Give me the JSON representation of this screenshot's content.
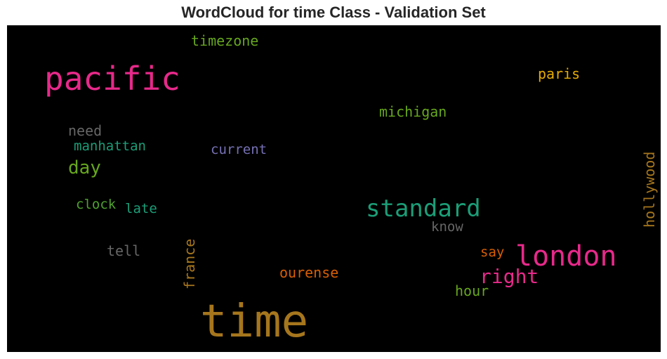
{
  "chart_data": {
    "type": "wordcloud",
    "title": "WordCloud for time Class - Validation Set",
    "background": "#000000",
    "words": [
      {
        "text": "time",
        "color": "#a6761d",
        "vertical": false
      },
      {
        "text": "pacific",
        "color": "#e7298a",
        "vertical": false
      },
      {
        "text": "london",
        "color": "#e7298a",
        "vertical": false
      },
      {
        "text": "standard",
        "color": "#1b9e77",
        "vertical": false
      },
      {
        "text": "right",
        "color": "#e7298a",
        "vertical": false
      },
      {
        "text": "day",
        "color": "#66a61e",
        "vertical": false
      },
      {
        "text": "timezone",
        "color": "#66a61e",
        "vertical": false
      },
      {
        "text": "paris",
        "color": "#e6ab02",
        "vertical": false
      },
      {
        "text": "michigan",
        "color": "#66a61e",
        "vertical": false
      },
      {
        "text": "need",
        "color": "#666666",
        "vertical": false
      },
      {
        "text": "manhattan",
        "color": "#1b9e77",
        "vertical": false
      },
      {
        "text": "current",
        "color": "#7570b3",
        "vertical": false
      },
      {
        "text": "hollywood",
        "color": "#a6761d",
        "vertical": true
      },
      {
        "text": "clock",
        "color": "#4ea12f",
        "vertical": false
      },
      {
        "text": "late",
        "color": "#1b9e77",
        "vertical": false
      },
      {
        "text": "know",
        "color": "#666666",
        "vertical": false
      },
      {
        "text": "say",
        "color": "#d95f02",
        "vertical": false
      },
      {
        "text": "tell",
        "color": "#666666",
        "vertical": false
      },
      {
        "text": "france",
        "color": "#a6761d",
        "vertical": true
      },
      {
        "text": "ourense",
        "color": "#d95f02",
        "vertical": false
      },
      {
        "text": "hour",
        "color": "#66a61e",
        "vertical": false
      }
    ]
  }
}
